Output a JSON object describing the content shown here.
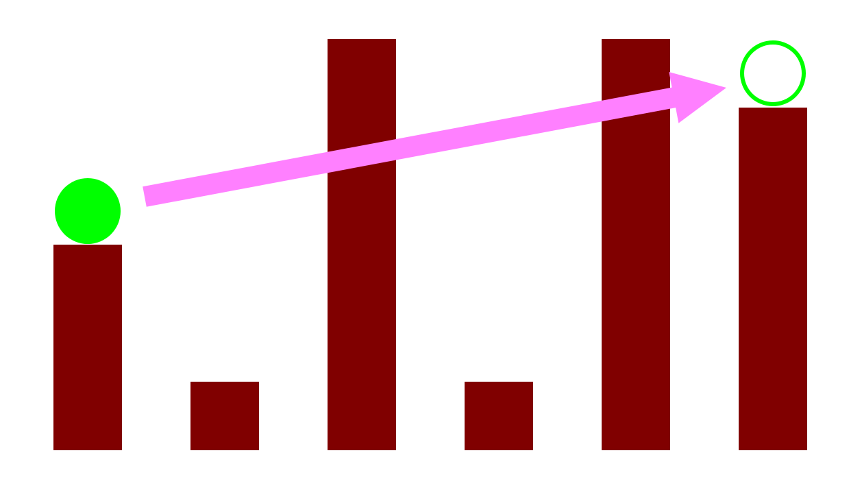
{
  "colors": {
    "background": "#ffffff",
    "pillar": "#800000",
    "ball": "#00ff00",
    "target_outline": "#00ff00",
    "arrow": "#ff80ff"
  },
  "pillars": {
    "unit": "grid cells",
    "heights": [
      3,
      1,
      6,
      1,
      6,
      5
    ]
  },
  "ball": {
    "pillar_index": 0,
    "filled": true
  },
  "target": {
    "pillar_index": 5,
    "filled": false
  },
  "arrow": {
    "from_pillar": 0,
    "to_pillar": 5,
    "icon": "arrow-right-icon"
  }
}
